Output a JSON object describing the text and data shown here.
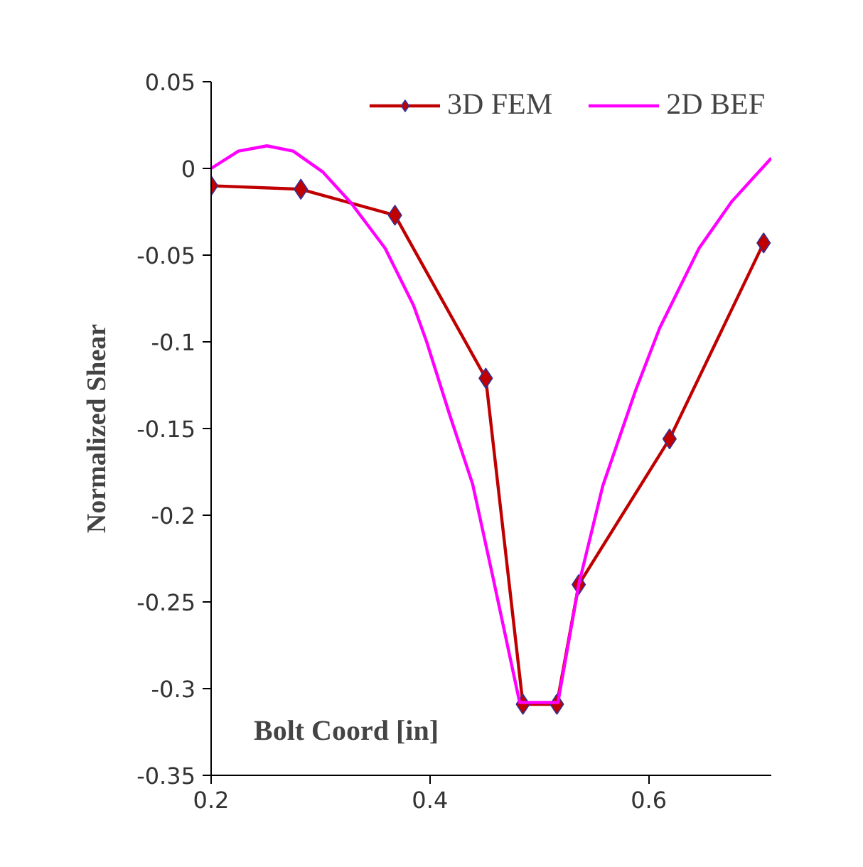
{
  "chart_data": {
    "type": "line",
    "xlabel": "Bolt Coord [in]",
    "ylabel": "Normalized Shear",
    "xlim": [
      0.2,
      0.712
    ],
    "ylim": [
      -0.35,
      0.05
    ],
    "xticks": [
      0.2,
      0.4,
      0.6
    ],
    "yticks": [
      -0.35,
      -0.3,
      -0.25,
      -0.2,
      -0.15,
      -0.1,
      -0.05,
      0,
      0.05
    ],
    "grid": false,
    "legend": "top right",
    "series": [
      {
        "name": "3D FEM",
        "color": "#c00000",
        "marker": "diamond",
        "x": [
          0.2,
          0.282,
          0.368,
          0.451,
          0.485,
          0.516,
          0.536,
          0.619,
          0.705
        ],
        "values": [
          -0.01,
          -0.012,
          -0.027,
          -0.121,
          -0.309,
          -0.309,
          -0.24,
          -0.156,
          -0.043
        ]
      },
      {
        "name": "2D BEF",
        "color": "#ff00ff",
        "marker": "none",
        "x": [
          0.2,
          0.225,
          0.251,
          0.275,
          0.302,
          0.328,
          0.359,
          0.385,
          0.397,
          0.418,
          0.439,
          0.458,
          0.482,
          0.517,
          0.536,
          0.558,
          0.588,
          0.61,
          0.646,
          0.676,
          0.712
        ],
        "values": [
          0,
          0.01,
          0.013,
          0.01,
          -0.002,
          -0.02,
          -0.046,
          -0.079,
          -0.1,
          -0.142,
          -0.182,
          -0.237,
          -0.308,
          -0.308,
          -0.24,
          -0.183,
          -0.128,
          -0.092,
          -0.046,
          -0.019,
          0.006
        ]
      }
    ]
  }
}
